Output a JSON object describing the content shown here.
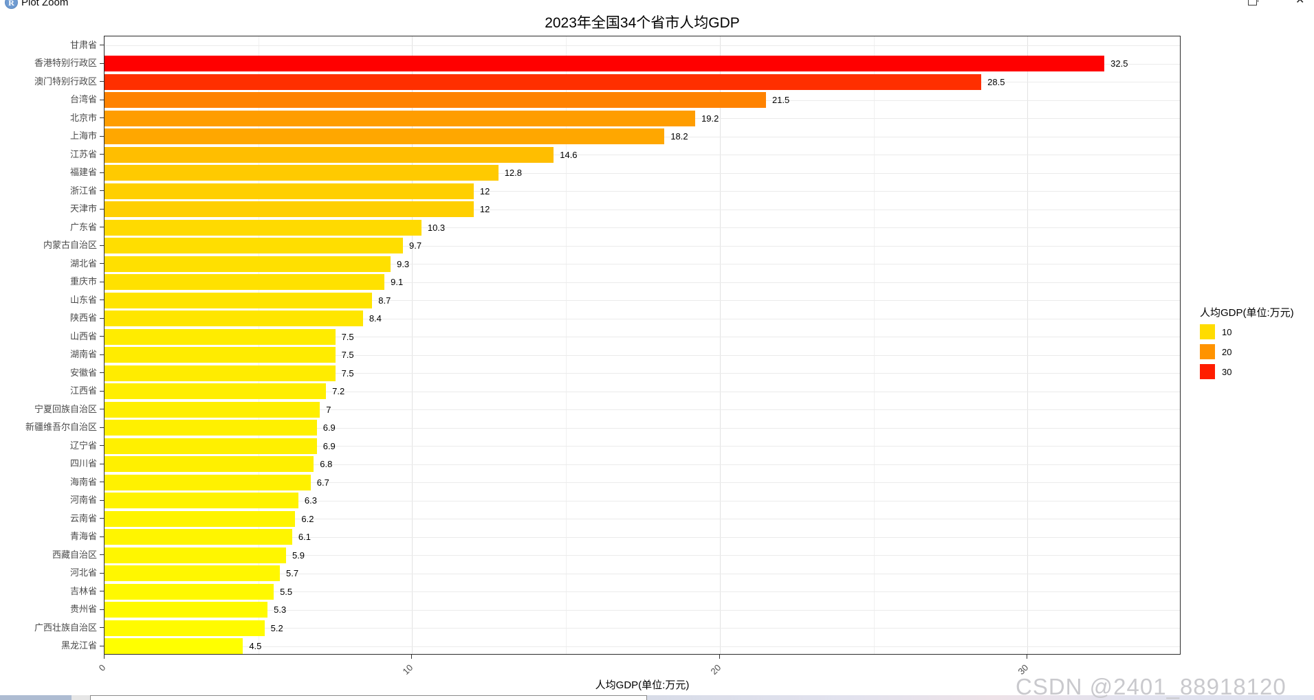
{
  "window": {
    "title": "Plot Zoom",
    "app_icon": "R",
    "restore_glyph": "",
    "close_glyph": "✕"
  },
  "chart_data": {
    "type": "bar",
    "orientation": "horizontal",
    "title": "2023年全国34个省市人均GDP",
    "xlabel": "人均GDP(单位:万元)",
    "ylabel": "",
    "xlim": [
      0,
      35
    ],
    "x_ticks": [
      0,
      10,
      20,
      30
    ],
    "x_minor_gridlines": [
      5,
      15,
      25
    ],
    "grid": true,
    "categories": [
      "甘肃省",
      "香港特别行政区",
      "澳门特别行政区",
      "台湾省",
      "北京市",
      "上海市",
      "江苏省",
      "福建省",
      "浙江省",
      "天津市",
      "广东省",
      "内蒙古自治区",
      "湖北省",
      "重庆市",
      "山东省",
      "陕西省",
      "山西省",
      "湖南省",
      "安徽省",
      "江西省",
      "宁夏回族自治区",
      "新疆维吾尔自治区",
      "辽宁省",
      "四川省",
      "海南省",
      "河南省",
      "云南省",
      "青海省",
      "西藏自治区",
      "河北省",
      "吉林省",
      "贵州省",
      "广西壮族自治区",
      "黑龙江省"
    ],
    "values": [
      null,
      32.5,
      28.5,
      21.5,
      19.2,
      18.2,
      14.6,
      12.8,
      12,
      12,
      10.3,
      9.7,
      9.3,
      9.1,
      8.7,
      8.4,
      7.5,
      7.5,
      7.5,
      7.2,
      7,
      6.9,
      6.9,
      6.8,
      6.7,
      6.3,
      6.2,
      6.1,
      5.9,
      5.7,
      5.5,
      5.3,
      5.2,
      4.5
    ],
    "value_labels": [
      "",
      "32.5",
      "28.5",
      "21.5",
      "19.2",
      "18.2",
      "14.6",
      "12.8",
      "12",
      "12",
      "10.3",
      "9.7",
      "9.3",
      "9.1",
      "8.7",
      "8.4",
      "7.5",
      "7.5",
      "7.5",
      "7.2",
      "7",
      "6.9",
      "6.9",
      "6.8",
      "6.7",
      "6.3",
      "6.2",
      "6.1",
      "5.9",
      "5.7",
      "5.5",
      "5.3",
      "5.2",
      "4.5"
    ],
    "legend": {
      "title": "人均GDP(单位:万元)",
      "position": "right",
      "items": [
        {
          "label": "10",
          "value": 10
        },
        {
          "label": "20",
          "value": 20
        },
        {
          "label": "30",
          "value": 30
        }
      ]
    },
    "color_scale": {
      "stops": [
        "#FFFF00",
        "#FFA500",
        "#FF0000"
      ],
      "domain": [
        4.5,
        32.5
      ]
    }
  },
  "watermark": "CSDN @2401_88918120"
}
